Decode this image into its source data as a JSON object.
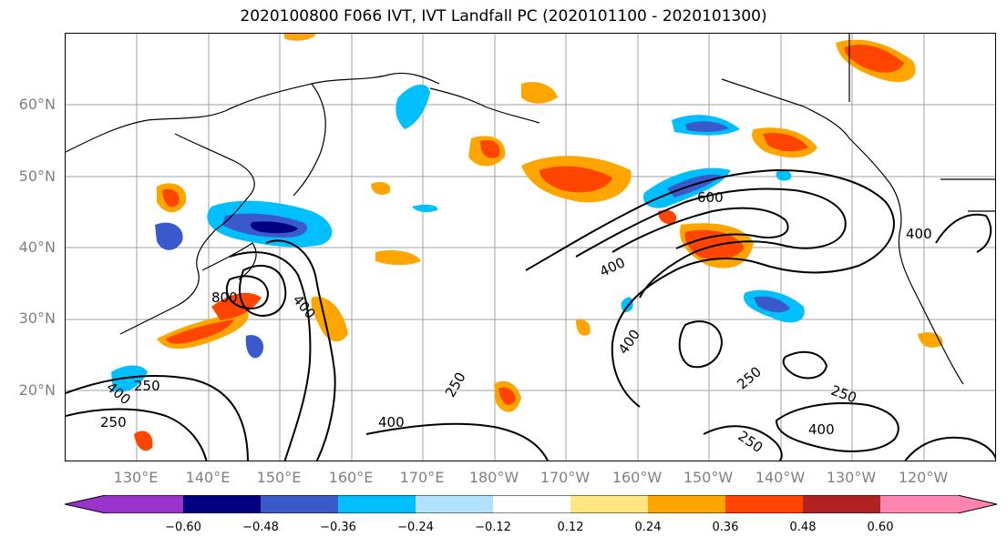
{
  "title": "2020100800 F066 IVT, IVT Landfall PC (2020101100 - 2020101300)",
  "lat_labels": [
    "60°N",
    "50°N",
    "40°N",
    "30°N",
    "20°N"
  ],
  "lon_labels": [
    "130°E",
    "140°E",
    "150°E",
    "160°E",
    "170°E",
    "180°W",
    "170°W",
    "160°W",
    "150°W",
    "140°W",
    "130°W",
    "120°W"
  ],
  "contour_labels": {
    "c600": "600",
    "c400_a": "400",
    "c400_b": "400",
    "c400_c": "400",
    "c400_d": "400",
    "c400_e": "400",
    "c400_f": "400",
    "c400_g": "400",
    "c250_a": "250",
    "c250_b": "250",
    "c250_c": "250",
    "c250_d": "250",
    "c250_e": "250",
    "c250_f": "250",
    "c800": "800"
  },
  "colorbar": {
    "ticks": [
      "−0.60",
      "−0.48",
      "−0.36",
      "−0.24",
      "−0.12",
      "0.12",
      "0.24",
      "0.36",
      "0.48",
      "0.60"
    ],
    "colors": [
      "#9933cc",
      "#000080",
      "#3a5acc",
      "#00bfff",
      "#b0e2ff",
      "#ffffff",
      "#ffe680",
      "#ffa500",
      "#ff4500",
      "#b22222",
      "#ff85b0"
    ]
  }
}
